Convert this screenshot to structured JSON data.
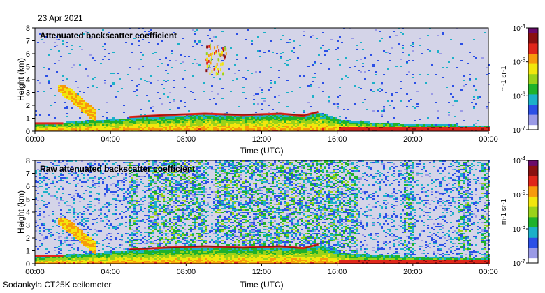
{
  "header": {
    "date": "23 Apr 2021"
  },
  "footer": {
    "instrument": "Sodankyla CT25K ceilometer"
  },
  "colors": {
    "background_low": "#d4d4e8",
    "scale": [
      "#ffffff",
      "#9a9ae6",
      "#2b4fe6",
      "#1cb0c8",
      "#1fb22b",
      "#9ad21a",
      "#f2e60d",
      "#f79a0d",
      "#e0261a",
      "#8a1010",
      "#6a0a6a"
    ]
  },
  "chart_data": [
    {
      "type": "heatmap",
      "title": "Attenuated backscatter coefficient",
      "xlabel": "Time (UTC)",
      "ylabel": "Height (km)",
      "xlim": [
        0,
        24
      ],
      "ylim": [
        0,
        8
      ],
      "x_ticks": [
        "00:00",
        "04:00",
        "08:00",
        "12:00",
        "16:00",
        "20:00",
        "00:00"
      ],
      "y_ticks": [
        "0",
        "1",
        "2",
        "3",
        "4",
        "5",
        "6",
        "7",
        "8"
      ],
      "colorbar": {
        "label": "m-1 sr-1",
        "ticks": [
          "10-7",
          "10-6",
          "10-5",
          "10-4"
        ],
        "log_range": [
          -7,
          -4
        ]
      },
      "features": {
        "boundary_layer_top_km": [
          [
            0.0,
            0.6
          ],
          [
            1.0,
            0.7
          ],
          [
            3.0,
            0.9
          ],
          [
            5.0,
            1.1
          ],
          [
            8.0,
            1.3
          ],
          [
            9.2,
            1.4
          ],
          [
            10.0,
            1.3
          ],
          [
            12.0,
            1.35
          ],
          [
            14.0,
            1.4
          ],
          [
            14.5,
            1.3
          ],
          [
            15.0,
            1.5
          ],
          [
            15.5,
            1.3
          ],
          [
            16.0,
            1.0
          ],
          [
            17.0,
            0.8
          ],
          [
            20.0,
            0.6
          ],
          [
            24.0,
            0.5
          ]
        ],
        "cloud_layer_km": [
          [
            5.0,
            1.1
          ],
          [
            7.0,
            1.25
          ],
          [
            9.0,
            1.35
          ],
          [
            11.0,
            1.25
          ],
          [
            13.0,
            1.35
          ],
          [
            14.2,
            1.2
          ],
          [
            15.0,
            1.5
          ]
        ],
        "elevated_plume": {
          "time_range": [
            9.0,
            10.1
          ],
          "height_range": [
            4.5,
            6.8
          ]
        }
      }
    },
    {
      "type": "heatmap",
      "title": "Raw attenuated backscatter coefficient",
      "xlabel": "Time (UTC)",
      "ylabel": "Height (km)",
      "xlim": [
        0,
        24
      ],
      "ylim": [
        0,
        8
      ],
      "x_ticks": [
        "00:00",
        "04:00",
        "08:00",
        "12:00",
        "16:00",
        "20:00",
        "00:00"
      ],
      "y_ticks": [
        "0",
        "1",
        "2",
        "3",
        "4",
        "5",
        "6",
        "7",
        "8"
      ],
      "colorbar": {
        "label": "m-1 sr-1",
        "ticks": [
          "10-7",
          "10-6",
          "10-5",
          "10-4"
        ],
        "log_range": [
          -7,
          -4
        ]
      },
      "features": {
        "noise_bands_utc": [
          [
            4.9,
            5.4
          ],
          [
            5.9,
            9.0
          ],
          [
            9.5,
            17.0
          ],
          [
            19.5,
            20.0
          ],
          [
            22.3,
            23.0
          ],
          [
            23.6,
            24.0
          ]
        ],
        "cloud_layer_km": [
          [
            5.0,
            1.1
          ],
          [
            7.0,
            1.25
          ],
          [
            9.0,
            1.35
          ],
          [
            11.0,
            1.25
          ],
          [
            13.0,
            1.35
          ],
          [
            14.2,
            1.2
          ],
          [
            15.0,
            1.5
          ]
        ]
      }
    }
  ]
}
